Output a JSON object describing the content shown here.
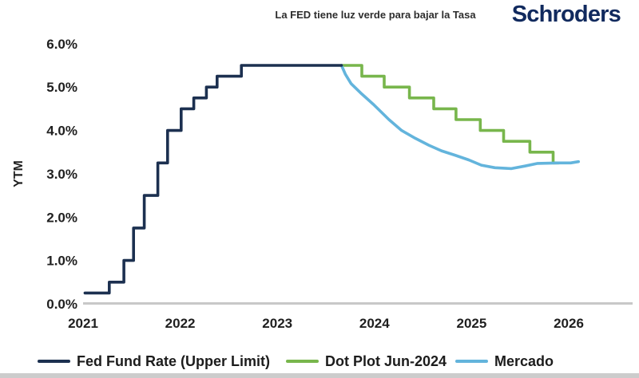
{
  "header": {
    "title": "La FED tiene luz verde para bajar la Tasa",
    "brand": "Schroders"
  },
  "chart_data": {
    "type": "line",
    "title": "La FED tiene luz verde para bajar la Tasa",
    "xlabel": "",
    "ylabel": "YTM",
    "x_ticks": [
      "2021",
      "2022",
      "2023",
      "2024",
      "2025",
      "2026"
    ],
    "y_ticks": [
      "6.0%",
      "5.0%",
      "4.0%",
      "3.0%",
      "2.0%",
      "1.0%",
      "0.0%"
    ],
    "xlim": [
      2020.95,
      2026.65
    ],
    "ylim": [
      0,
      6.2
    ],
    "grid": false,
    "legend_position": "bottom",
    "axis_color": "#c8c8c8",
    "series": [
      {
        "name": "Dot Plot Jun-2024",
        "color": "#78b64c",
        "style": "step",
        "points": [
          [
            2023.66,
            5.5
          ],
          [
            2023.87,
            5.25
          ],
          [
            2024.1,
            5.0
          ],
          [
            2024.36,
            4.75
          ],
          [
            2024.61,
            4.5
          ],
          [
            2024.84,
            4.25
          ],
          [
            2025.09,
            4.0
          ],
          [
            2025.33,
            3.75
          ],
          [
            2025.6,
            3.5
          ],
          [
            2025.84,
            3.25
          ],
          [
            2025.9,
            3.25
          ]
        ]
      },
      {
        "name": "Mercado",
        "color": "#63b4dc",
        "style": "line",
        "points": [
          [
            2023.66,
            5.5
          ],
          [
            2023.7,
            5.3
          ],
          [
            2023.76,
            5.08
          ],
          [
            2023.87,
            4.84
          ],
          [
            2023.99,
            4.6
          ],
          [
            2024.15,
            4.25
          ],
          [
            2024.28,
            4.0
          ],
          [
            2024.42,
            3.82
          ],
          [
            2024.56,
            3.66
          ],
          [
            2024.69,
            3.53
          ],
          [
            2024.83,
            3.43
          ],
          [
            2024.97,
            3.32
          ],
          [
            2025.1,
            3.2
          ],
          [
            2025.24,
            3.14
          ],
          [
            2025.41,
            3.12
          ],
          [
            2025.55,
            3.18
          ],
          [
            2025.68,
            3.24
          ],
          [
            2025.9,
            3.25
          ],
          [
            2026.02,
            3.25
          ],
          [
            2026.1,
            3.28
          ]
        ]
      },
      {
        "name": "Fed Fund Rate (Upper Limit)",
        "color": "#1c3050",
        "style": "step",
        "points": [
          [
            2021.02,
            0.25
          ],
          [
            2021.27,
            0.5
          ],
          [
            2021.42,
            1.0
          ],
          [
            2021.52,
            1.75
          ],
          [
            2021.63,
            2.5
          ],
          [
            2021.77,
            3.25
          ],
          [
            2021.87,
            4.0
          ],
          [
            2022.01,
            4.5
          ],
          [
            2022.14,
            4.75
          ],
          [
            2022.27,
            5.0
          ],
          [
            2022.38,
            5.25
          ],
          [
            2022.63,
            5.5
          ],
          [
            2023.66,
            5.5
          ]
        ]
      }
    ]
  },
  "legend": {
    "items": [
      {
        "label": "Fed Fund Rate (Upper Limit)",
        "color": "#1c3050"
      },
      {
        "label": "Dot Plot Jun-2024",
        "color": "#78b64c"
      },
      {
        "label": "Mercado",
        "color": "#63b4dc"
      }
    ]
  }
}
